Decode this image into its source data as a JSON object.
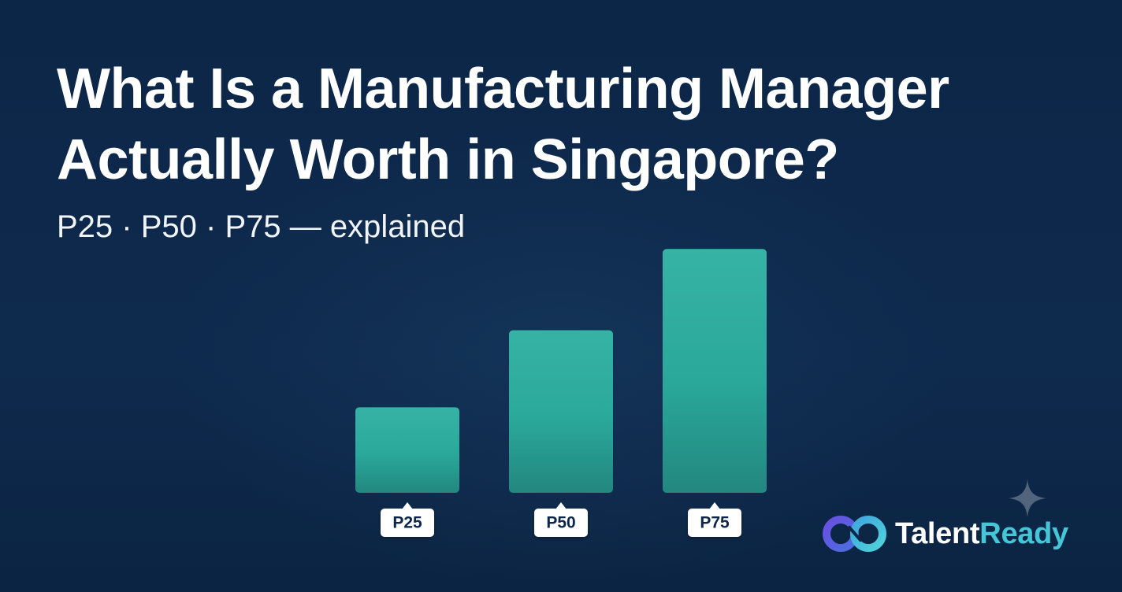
{
  "headline": {
    "line1": "What Is a Manufacturing Manager",
    "line2": "Actually Worth in Singapore?"
  },
  "subtitle": "P25 · P50 · P75 — explained",
  "chart_data": {
    "type": "bar",
    "categories": [
      "P25",
      "P50",
      "P75"
    ],
    "values": [
      1,
      1.9,
      2.85
    ],
    "title": "",
    "xlabel": "",
    "ylabel": "",
    "ylim": [
      0,
      3
    ],
    "grid": false,
    "legend": "none",
    "bar_color": "#2aa89a",
    "bar_color_top": "#36b3a5",
    "bar_color_bottom": "#23877f"
  },
  "brand": {
    "name_part1": "Talent",
    "name_part2": "Ready",
    "logo_icon": "infinity-link-icon",
    "decor_icon": "sparkle-icon",
    "accent_color": "#44c6d6",
    "logo_purple": "#5b4fd6"
  },
  "colors": {
    "background": "#0d2748",
    "text": "#ffffff"
  }
}
